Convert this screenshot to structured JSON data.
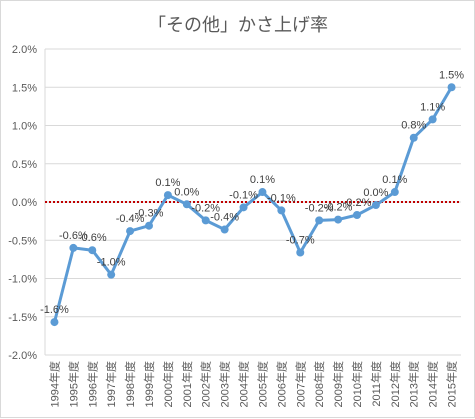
{
  "chart_data": {
    "type": "line",
    "title": "「その他」かさ上げ率",
    "categories": [
      "1994年度",
      "1995年度",
      "1996年度",
      "1997年度",
      "1998年度",
      "1999年度",
      "2000年度",
      "2001年度",
      "2002年度",
      "2003年度",
      "2004年度",
      "2005年度",
      "2006年度",
      "2007年度",
      "2008年度",
      "2009年度",
      "2010年度",
      "2011年度",
      "2012年度",
      "2013年度",
      "2014年度",
      "2015年度"
    ],
    "values": [
      -1.57,
      -0.6,
      -0.63,
      -0.95,
      -0.38,
      -0.31,
      0.09,
      -0.03,
      -0.24,
      -0.36,
      -0.07,
      0.13,
      -0.11,
      -0.66,
      -0.24,
      -0.23,
      -0.17,
      -0.04,
      0.13,
      0.84,
      1.08,
      1.5
    ],
    "data_labels": [
      "-1.6%",
      "-0.6%",
      "-0.6%",
      "-1.0%",
      "-0.4%",
      "-0.3%",
      "0.1%",
      "0.0%",
      "-0.2%",
      "-0.4%",
      "-0.1%",
      "0.1%",
      "-0.1%",
      "-0.7%",
      "-0.2%",
      "-0.2%",
      "-0.2%",
      "0.0%",
      "0.1%",
      "0.8%",
      "1.1%",
      "1.5%"
    ],
    "yticks": [
      2.0,
      1.5,
      1.0,
      0.5,
      0.0,
      -0.5,
      -1.0,
      -1.5,
      -2.0
    ],
    "ytick_labels": [
      "2.0%",
      "1.5%",
      "1.0%",
      "0.5%",
      "0.0%",
      "-0.5%",
      "-1.0%",
      "-1.5%",
      "-2.0%"
    ],
    "ylim": [
      -2.0,
      2.0
    ],
    "xlabel": "",
    "ylabel": "",
    "grid": true,
    "reference_line": 0.0,
    "line_color": "#5b9bd5",
    "reference_color": "#c00000"
  }
}
